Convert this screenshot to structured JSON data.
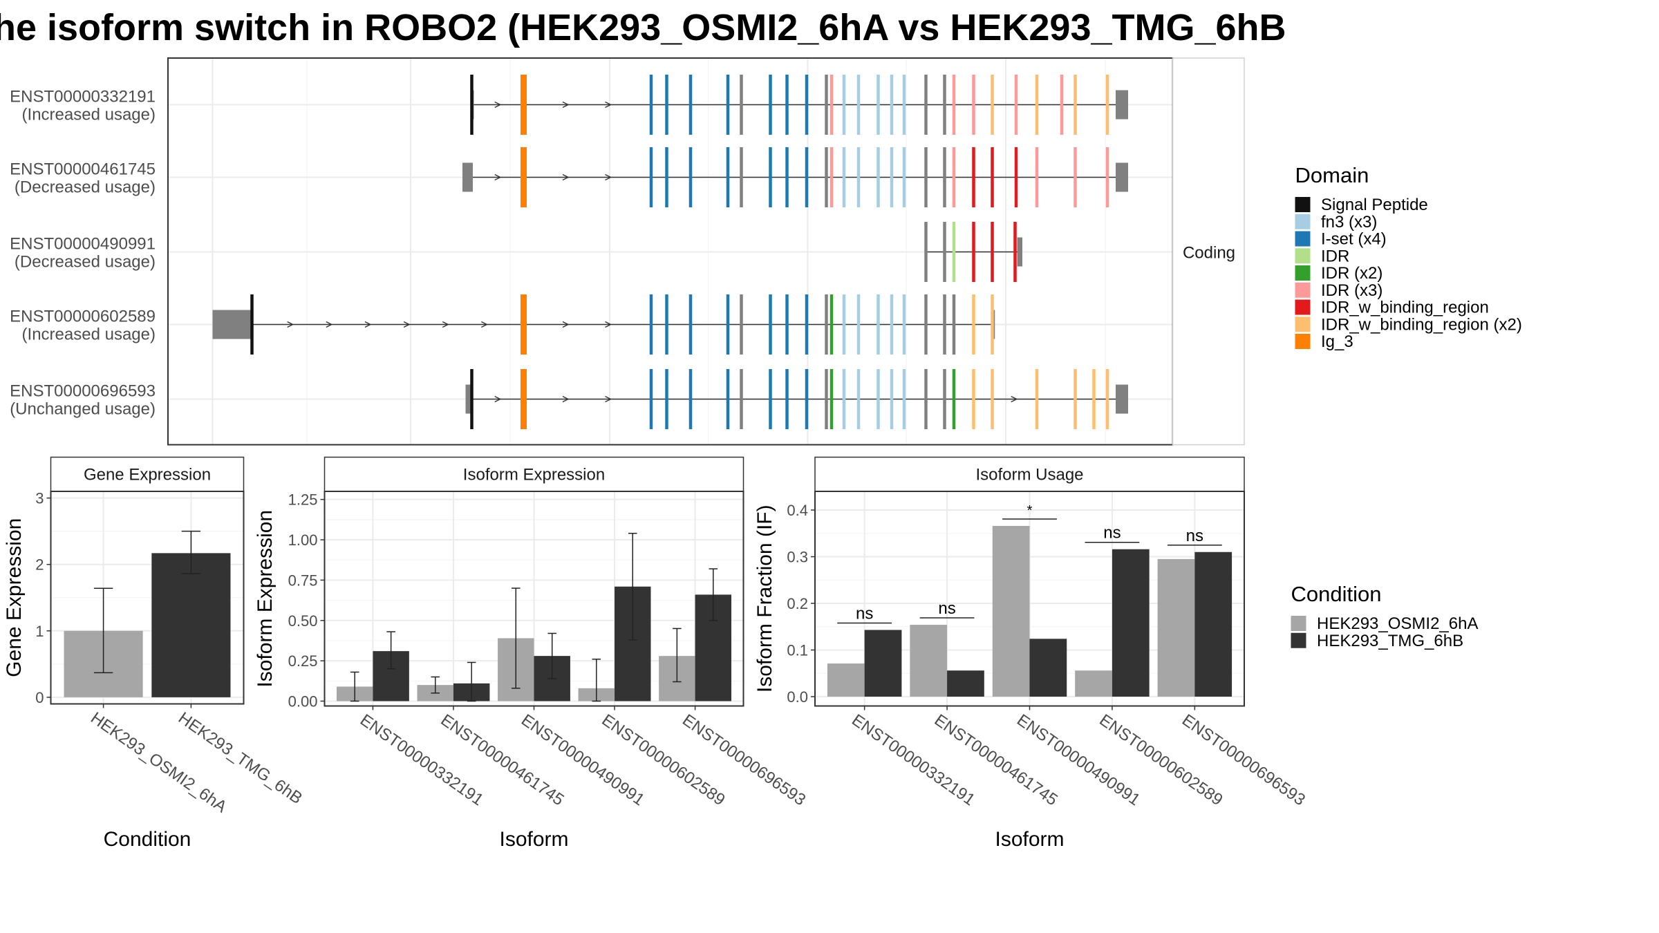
{
  "title": "he isoform switch in ROBO2 (HEK293_OSMI2_6hA vs HEK293_TMG_6hB",
  "colors": {
    "condition_a": "#a6a6a6",
    "condition_b": "#333333",
    "utr": "#808080",
    "intron": "#333333",
    "grid": "#ebebeb",
    "panel_border": "#333333"
  },
  "structure": {
    "facet_label": "Coding",
    "isoforms": [
      {
        "id": "ENST00000332191",
        "usage": "(Increased usage)",
        "utr_start": [
          456,
          456
        ],
        "utr_end": [
          1076,
          1088
        ],
        "marks": [
          [
            455,
            "SP"
          ],
          [
            505,
            "Ig"
          ],
          [
            628,
            "IS"
          ],
          [
            643,
            "IS"
          ],
          [
            666,
            "IS"
          ],
          [
            702,
            "IS"
          ],
          [
            715,
            "UN"
          ],
          [
            743,
            "IS"
          ],
          [
            759,
            "IS"
          ],
          [
            778,
            "IS"
          ],
          [
            797,
            "UN"
          ],
          [
            802,
            "PK"
          ],
          [
            814,
            "FN"
          ],
          [
            828,
            "FN"
          ],
          [
            847,
            "FN"
          ],
          [
            860,
            "FN"
          ],
          [
            872,
            "FN"
          ],
          [
            893,
            "UN"
          ],
          [
            911,
            "UN"
          ],
          [
            920,
            "PK"
          ],
          [
            939,
            "PK"
          ],
          [
            957,
            "OR"
          ],
          [
            980,
            "PK"
          ],
          [
            1000,
            "OR"
          ],
          [
            1024,
            "PK"
          ],
          [
            1037,
            "OR"
          ],
          [
            1068,
            "OR"
          ]
        ]
      },
      {
        "id": "ENST00000461745",
        "usage": "(Decreased usage)",
        "utr_start": [
          446,
          456
        ],
        "utr_end": [
          1076,
          1088
        ],
        "marks": [
          [
            505,
            "Ig"
          ],
          [
            628,
            "IS"
          ],
          [
            643,
            "IS"
          ],
          [
            666,
            "IS"
          ],
          [
            702,
            "IS"
          ],
          [
            715,
            "UN"
          ],
          [
            743,
            "IS"
          ],
          [
            759,
            "IS"
          ],
          [
            778,
            "IS"
          ],
          [
            797,
            "UN"
          ],
          [
            802,
            "PK"
          ],
          [
            814,
            "FN"
          ],
          [
            828,
            "FN"
          ],
          [
            847,
            "FN"
          ],
          [
            860,
            "FN"
          ],
          [
            872,
            "FN"
          ],
          [
            893,
            "UN"
          ],
          [
            911,
            "UN"
          ],
          [
            920,
            "PK"
          ],
          [
            939,
            "RD"
          ],
          [
            957,
            "RD"
          ],
          [
            980,
            "RD"
          ],
          [
            1000,
            "PK"
          ],
          [
            1037,
            "PK"
          ],
          [
            1068,
            "PK"
          ]
        ]
      },
      {
        "id": "ENST00000490991",
        "usage": "(Decreased usage)",
        "utr_start": [
          893,
          893
        ],
        "utr_end": [
          981,
          986
        ],
        "marks": [
          [
            893,
            "UN"
          ],
          [
            911,
            "UN"
          ],
          [
            920,
            "LG"
          ],
          [
            939,
            "RD"
          ],
          [
            957,
            "RD"
          ],
          [
            979,
            "RD"
          ]
        ]
      },
      {
        "id": "ENST00000602589",
        "usage": "(Increased usage)",
        "utr_start": [
          205,
          243
        ],
        "utr_end": [
          958,
          958
        ],
        "marks": [
          [
            243,
            "SP"
          ],
          [
            505,
            "Ig"
          ],
          [
            628,
            "IS"
          ],
          [
            643,
            "IS"
          ],
          [
            666,
            "IS"
          ],
          [
            702,
            "IS"
          ],
          [
            715,
            "UN"
          ],
          [
            743,
            "IS"
          ],
          [
            759,
            "IS"
          ],
          [
            778,
            "IS"
          ],
          [
            797,
            "UN"
          ],
          [
            802,
            "DG"
          ],
          [
            814,
            "FN"
          ],
          [
            828,
            "FN"
          ],
          [
            847,
            "FN"
          ],
          [
            860,
            "FN"
          ],
          [
            872,
            "FN"
          ],
          [
            893,
            "UN"
          ],
          [
            911,
            "UN"
          ],
          [
            920,
            "UN"
          ],
          [
            939,
            "OR"
          ],
          [
            957,
            "OR"
          ]
        ]
      },
      {
        "id": "ENST00000696593",
        "usage": "(Unchanged usage)",
        "utr_start": [
          449,
          456
        ],
        "utr_end": [
          1076,
          1088
        ],
        "marks": [
          [
            455,
            "SP"
          ],
          [
            505,
            "Ig"
          ],
          [
            628,
            "IS"
          ],
          [
            643,
            "IS"
          ],
          [
            666,
            "IS"
          ],
          [
            702,
            "IS"
          ],
          [
            715,
            "UN"
          ],
          [
            743,
            "IS"
          ],
          [
            759,
            "IS"
          ],
          [
            778,
            "IS"
          ],
          [
            797,
            "UN"
          ],
          [
            802,
            "DG"
          ],
          [
            814,
            "FN"
          ],
          [
            828,
            "FN"
          ],
          [
            847,
            "FN"
          ],
          [
            860,
            "FN"
          ],
          [
            872,
            "FN"
          ],
          [
            893,
            "UN"
          ],
          [
            911,
            "UN"
          ],
          [
            920,
            "DG"
          ],
          [
            939,
            "OR"
          ],
          [
            957,
            "OR"
          ],
          [
            1000,
            "OR"
          ],
          [
            1037,
            "OR"
          ],
          [
            1055,
            "OR"
          ],
          [
            1068,
            "OR"
          ]
        ]
      }
    ]
  },
  "legend_domain": {
    "title": "Domain",
    "items": [
      {
        "key": "SP",
        "label": "Signal Peptide",
        "color": "#111111"
      },
      {
        "key": "FN",
        "label": "fn3 (x3)",
        "color": "#a6cee3"
      },
      {
        "key": "IS",
        "label": "I-set (x4)",
        "color": "#1f78b4"
      },
      {
        "key": "LG",
        "label": "IDR",
        "color": "#b2df8a"
      },
      {
        "key": "DG",
        "label": "IDR (x2)",
        "color": "#33a02c"
      },
      {
        "key": "PK",
        "label": "IDR (x3)",
        "color": "#fb9a99"
      },
      {
        "key": "RD",
        "label": "IDR_w_binding_region",
        "color": "#e31a1c"
      },
      {
        "key": "OR",
        "label": "IDR_w_binding_region (x2)",
        "color": "#fdbf6f"
      },
      {
        "key": "Ig",
        "label": "Ig_3",
        "color": "#ff7f00"
      }
    ]
  },
  "legend_condition": {
    "title": "Condition",
    "items": [
      {
        "label": "HEK293_OSMI2_6hA",
        "color": "#a6a6a6"
      },
      {
        "label": "HEK293_TMG_6hB",
        "color": "#333333"
      }
    ]
  },
  "chart_data": [
    {
      "type": "bar",
      "title": "Gene Expression",
      "xlabel": "Condition",
      "ylabel": "Gene Expression",
      "ylim": [
        -0.1,
        3.1
      ],
      "yticks": [
        0,
        1,
        2,
        3
      ],
      "categories": [
        "HEK293_OSMI2_6hA",
        "HEK293_TMG_6hB"
      ],
      "values": [
        1.0,
        2.17
      ],
      "error_low": [
        0.37,
        1.86
      ],
      "error_high": [
        1.64,
        2.5
      ]
    },
    {
      "type": "bar",
      "title": "Isoform Expression",
      "xlabel": "Isoform",
      "ylabel": "Isoform Expression",
      "ylim": [
        -0.03,
        1.3
      ],
      "yticks": [
        0.0,
        0.25,
        0.5,
        0.75,
        1.0,
        1.25
      ],
      "categories": [
        "ENST00000332191",
        "ENST00000461745",
        "ENST00000490991",
        "ENST00000602589",
        "ENST00000696593"
      ],
      "series": [
        {
          "name": "HEK293_OSMI2_6hA",
          "values": [
            0.09,
            0.1,
            0.39,
            0.08,
            0.28
          ],
          "error_low": [
            0.0,
            0.05,
            0.08,
            0.0,
            0.12
          ],
          "error_high": [
            0.18,
            0.15,
            0.7,
            0.26,
            0.45
          ]
        },
        {
          "name": "HEK293_TMG_6hB",
          "values": [
            0.31,
            0.11,
            0.28,
            0.71,
            0.66
          ],
          "error_low": [
            0.2,
            0.0,
            0.14,
            0.38,
            0.5
          ],
          "error_high": [
            0.43,
            0.24,
            0.42,
            1.04,
            0.82
          ]
        }
      ]
    },
    {
      "type": "bar",
      "title": "Isoform Usage",
      "xlabel": "Isoform",
      "ylabel": "Isoform Fraction (IF)",
      "ylim": [
        -0.02,
        0.44
      ],
      "yticks": [
        0.0,
        0.1,
        0.2,
        0.3,
        0.4
      ],
      "categories": [
        "ENST00000332191",
        "ENST00000461745",
        "ENST00000490991",
        "ENST00000602589",
        "ENST00000696593"
      ],
      "series": [
        {
          "name": "HEK293_OSMI2_6hA",
          "values": [
            0.071,
            0.154,
            0.366,
            0.056,
            0.295
          ]
        },
        {
          "name": "HEK293_TMG_6hB",
          "values": [
            0.143,
            0.056,
            0.124,
            0.316,
            0.31
          ]
        }
      ],
      "significance": [
        "ns",
        "ns",
        "*",
        "ns",
        "ns"
      ]
    }
  ]
}
